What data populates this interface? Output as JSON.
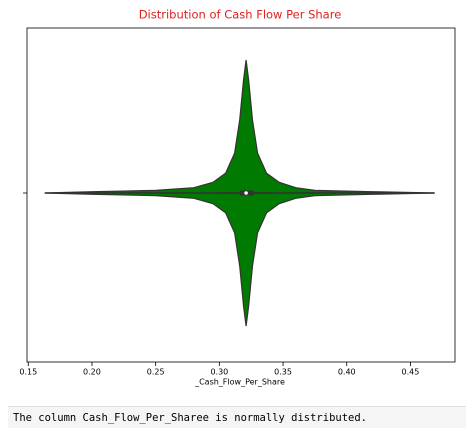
{
  "chart_data": {
    "type": "violin",
    "title": "Distribution of Cash Flow Per Share",
    "title_color": "#e0201e",
    "xlabel": "_Cash_Flow_Per_Share",
    "color": "#007a00",
    "xlim": [
      0.149,
      0.485
    ],
    "xticks": [
      0.15,
      {
        "value": 0.2,
        "label": "0.20"
      },
      0.25,
      {
        "value": 0.3,
        "label": "0.30"
      },
      0.35,
      {
        "value": 0.4,
        "label": "0.40"
      },
      0.45
    ],
    "kde": {
      "x": [
        0.163,
        0.2,
        0.25,
        0.28,
        0.295,
        0.305,
        0.312,
        0.316,
        0.319,
        0.321,
        0.323,
        0.326,
        0.33,
        0.337,
        0.347,
        0.36,
        0.375,
        0.42,
        0.469
      ],
      "density": [
        0,
        0.01,
        0.02,
        0.04,
        0.08,
        0.15,
        0.3,
        0.55,
        0.85,
        1.0,
        0.85,
        0.55,
        0.3,
        0.15,
        0.08,
        0.04,
        0.02,
        0.01,
        0
      ]
    },
    "box": {
      "whisker_low": 0.3,
      "q1": 0.316,
      "median": 0.321,
      "q3": 0.327,
      "whisker_high": 0.343
    }
  },
  "output": {
    "text": "The column Cash_Flow_Per_Sharee is normally distributed."
  }
}
